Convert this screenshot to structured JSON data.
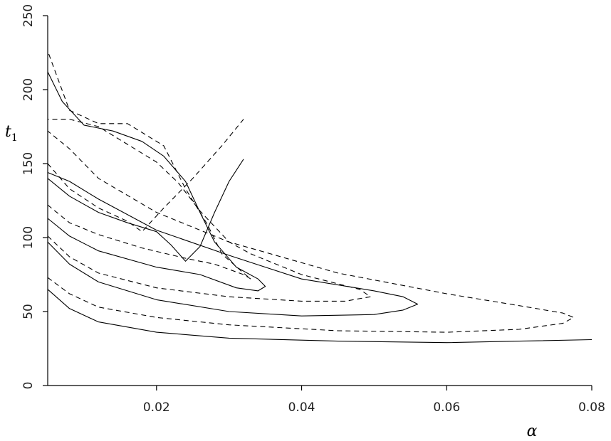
{
  "chart_data": {
    "type": "line",
    "xlabel": "α",
    "ylabel_main": "t",
    "ylabel_sub": "1",
    "xlim": [
      0.005,
      0.08
    ],
    "ylim": [
      0,
      250
    ],
    "x_ticks": [
      0.02,
      0.04,
      0.06,
      0.08
    ],
    "x_tick_labels": [
      "0.02",
      "0.04",
      "0.06",
      "0.08"
    ],
    "y_ticks": [
      0,
      50,
      100,
      150,
      200,
      250
    ],
    "y_tick_labels": [
      "0",
      "50",
      "100",
      "150",
      "200",
      "250"
    ],
    "grid": false,
    "legend": "none",
    "series": [
      {
        "style": "solid",
        "x": [
          0.005,
          0.008,
          0.012,
          0.02,
          0.03,
          0.045,
          0.06,
          0.07,
          0.08
        ],
        "y": [
          65,
          52,
          43,
          36,
          32,
          30,
          29,
          30,
          31
        ]
      },
      {
        "style": "dashed",
        "x": [
          0.005,
          0.008,
          0.012,
          0.02,
          0.03,
          0.045,
          0.06,
          0.07,
          0.076,
          0.0775,
          0.076,
          0.07,
          0.06,
          0.045,
          0.03,
          0.02,
          0.012,
          0.008,
          0.005
        ],
        "y": [
          73,
          62,
          53,
          46,
          41,
          37,
          36,
          38,
          42,
          46,
          49,
          54,
          62,
          76,
          97,
          117,
          140,
          160,
          172
        ]
      },
      {
        "style": "solid",
        "x": [
          0.005,
          0.008,
          0.012,
          0.02,
          0.03,
          0.04,
          0.05,
          0.054,
          0.056,
          0.054,
          0.05,
          0.04,
          0.03,
          0.02,
          0.012,
          0.008,
          0.005
        ],
        "y": [
          97,
          82,
          70,
          58,
          50,
          47,
          48,
          51,
          55,
          60,
          64,
          72,
          88,
          105,
          126,
          138,
          144
        ]
      },
      {
        "style": "dashed",
        "x": [
          0.005,
          0.008,
          0.012,
          0.02,
          0.03,
          0.04,
          0.046,
          0.0495,
          0.048,
          0.04,
          0.033,
          0.03,
          0.026,
          0.023,
          0.02,
          0.016,
          0.012,
          0.008,
          0.005
        ],
        "y": [
          101,
          87,
          76,
          66,
          60,
          57,
          57,
          60,
          65,
          75,
          89,
          97,
          118,
          137,
          151,
          163,
          175,
          180,
          180
        ]
      },
      {
        "style": "solid",
        "x": [
          0.005,
          0.008,
          0.012,
          0.02,
          0.026,
          0.031,
          0.034,
          0.035,
          0.034,
          0.031,
          0.028,
          0.026,
          0.024,
          0.021,
          0.018,
          0.014,
          0.01,
          0.007,
          0.005
        ],
        "y": [
          113,
          101,
          91,
          80,
          75,
          66,
          64,
          67,
          72,
          80,
          97,
          117,
          138,
          155,
          165,
          172,
          176,
          192,
          212
        ]
      },
      {
        "style": "dashed",
        "x": [
          0.005,
          0.008,
          0.012,
          0.018,
          0.024,
          0.028,
          0.032,
          0.033,
          0.032,
          0.029,
          0.027,
          0.024,
          0.021,
          0.016,
          0.012,
          0.008,
          0.005
        ],
        "y": [
          122,
          110,
          102,
          93,
          86,
          82,
          75,
          72,
          76,
          89,
          109,
          133,
          162,
          177,
          177,
          186,
          226
        ]
      },
      {
        "style": "solid",
        "x": [
          0.005,
          0.008,
          0.012,
          0.016,
          0.02,
          0.022,
          0.024,
          0.026,
          0.028,
          0.03,
          0.032
        ],
        "y": [
          140,
          128,
          117,
          110,
          104,
          95,
          84,
          94,
          117,
          138,
          153
        ]
      },
      {
        "style": "dashed",
        "x": [
          0.005,
          0.008,
          0.012,
          0.016,
          0.018,
          0.021,
          0.025,
          0.029,
          0.032
        ],
        "y": [
          150,
          133,
          120,
          111,
          104,
          120,
          140,
          162,
          180
        ]
      }
    ]
  }
}
